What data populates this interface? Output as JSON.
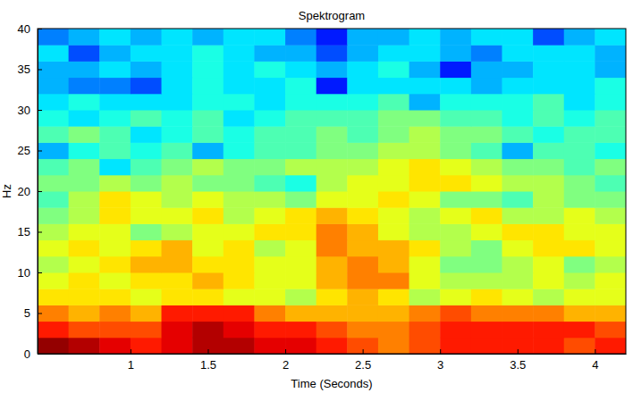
{
  "chart_data": {
    "type": "heatmap",
    "title": "Spektrogram",
    "x_label": "Time (Seconds)",
    "y_label": "Hz",
    "x": [
      0.5,
      0.7,
      0.9,
      1.1,
      1.3,
      1.5,
      1.7,
      1.9,
      2.1,
      2.3,
      2.5,
      2.7,
      2.9,
      3.1,
      3.3,
      3.5,
      3.7,
      3.9,
      4.1
    ],
    "y": [
      1,
      3,
      5,
      7,
      9,
      11,
      13,
      15,
      17,
      19,
      21,
      23,
      25,
      27,
      29,
      31,
      33,
      35,
      37,
      39
    ],
    "z": [
      [
        9.8,
        9.5,
        9,
        8.5,
        9,
        9.5,
        9.5,
        9,
        9,
        8.5,
        8,
        7.5,
        8,
        8.5,
        8.5,
        8.5,
        8.5,
        8,
        8.5
      ],
      [
        8.5,
        8,
        8,
        8,
        9,
        9.5,
        9,
        8.5,
        8.5,
        8,
        7.5,
        7.5,
        8,
        8.5,
        8.5,
        8.5,
        8.5,
        8.5,
        8
      ],
      [
        7.5,
        7,
        7.5,
        7,
        8.5,
        8.5,
        8.5,
        7.5,
        7,
        7,
        7,
        7,
        7.5,
        8,
        7.5,
        7.5,
        7.5,
        7,
        7
      ],
      [
        6.5,
        6.5,
        6.5,
        6,
        6.5,
        6.5,
        6,
        6,
        5.5,
        6.5,
        7,
        6.5,
        5.5,
        6,
        6.5,
        6,
        5.5,
        6,
        6
      ],
      [
        6,
        6.5,
        6,
        6.5,
        6.5,
        7,
        6.5,
        6,
        6,
        7,
        7.5,
        7.5,
        6,
        5.5,
        5.5,
        5.5,
        6,
        5.5,
        6
      ],
      [
        5.5,
        6,
        6.5,
        7,
        7,
        6.5,
        6.5,
        6,
        6,
        7,
        7.5,
        7,
        6,
        5,
        5,
        5.5,
        6,
        5,
        5.5
      ],
      [
        6,
        6.5,
        6,
        6.5,
        7,
        6,
        6.5,
        5.5,
        6,
        7.5,
        7,
        7,
        6.5,
        5.5,
        5,
        6,
        6.5,
        6.5,
        6
      ],
      [
        5.5,
        6,
        6,
        5,
        5.5,
        6,
        6,
        6.5,
        6.5,
        7.5,
        7,
        6,
        5.5,
        5.5,
        6,
        6.5,
        6.5,
        6,
        6
      ],
      [
        5,
        5.5,
        6.5,
        6,
        6,
        6.5,
        5.5,
        6,
        6.5,
        7,
        6.5,
        6,
        5.5,
        6,
        6.5,
        5.5,
        5.5,
        6,
        5.5
      ],
      [
        4.5,
        5.5,
        6.5,
        6,
        5.5,
        6,
        5.5,
        5.5,
        5,
        6,
        6,
        6.5,
        6,
        5,
        5,
        4.5,
        5.5,
        5,
        5
      ],
      [
        5,
        5,
        5.5,
        5,
        5.5,
        5,
        5,
        4.5,
        4,
        5.5,
        6,
        6,
        6.5,
        6.5,
        6,
        5.5,
        5.5,
        5,
        4.5
      ],
      [
        4.5,
        5,
        3.5,
        4.5,
        5,
        5.5,
        5,
        5,
        5.5,
        5.5,
        5.5,
        6,
        6.5,
        6,
        5.5,
        5,
        5,
        4.5,
        5
      ],
      [
        3,
        4,
        4.5,
        4,
        4.5,
        3,
        4,
        4.5,
        4.5,
        5,
        5,
        5.5,
        5.5,
        5,
        4.5,
        3,
        4.5,
        4.5,
        4
      ],
      [
        4.5,
        5,
        4.5,
        3.5,
        4,
        4.5,
        4,
        4.5,
        4.5,
        5,
        4.5,
        5,
        5.5,
        5,
        5,
        4.5,
        4,
        4.5,
        4.5
      ],
      [
        4,
        3.5,
        4,
        4.5,
        4,
        4.5,
        3.5,
        4,
        4.5,
        4.5,
        4.5,
        5,
        5,
        4.5,
        4.5,
        4,
        4.5,
        4,
        4.5
      ],
      [
        3.5,
        4,
        3.5,
        3.5,
        3.5,
        4,
        4,
        3.5,
        4,
        4,
        4,
        4.5,
        3,
        4,
        4,
        4,
        4.5,
        3.5,
        4
      ],
      [
        3,
        2.5,
        2.5,
        2,
        3.5,
        4,
        3.5,
        3.5,
        4,
        1.5,
        3.5,
        3.5,
        3.5,
        3.5,
        3,
        3.5,
        3.5,
        3.5,
        4
      ],
      [
        3,
        3,
        3.5,
        3,
        3.5,
        4,
        3.5,
        4,
        3.5,
        3,
        3.5,
        4,
        3,
        1.5,
        3,
        3,
        3.5,
        3.5,
        3
      ],
      [
        3.5,
        2,
        3,
        3.5,
        3.5,
        4,
        3.5,
        3,
        3,
        2,
        3,
        3.5,
        3.5,
        3,
        2.5,
        3.5,
        3.5,
        3.5,
        3
      ],
      [
        2.5,
        3,
        3.5,
        3,
        3.5,
        3,
        3.5,
        3.5,
        2.5,
        1.5,
        3,
        3,
        3.5,
        3,
        3.5,
        3.5,
        2,
        3,
        3.5
      ]
    ],
    "zlim": [
      0,
      10
    ],
    "xlim": [
      0.4,
      4.2
    ],
    "xticks": [
      1,
      1.5,
      2,
      2.5,
      3,
      3.5,
      4
    ],
    "ylim": [
      0,
      40
    ],
    "yticks": [
      0,
      5,
      10,
      15,
      20,
      25,
      30,
      35,
      40
    ]
  }
}
